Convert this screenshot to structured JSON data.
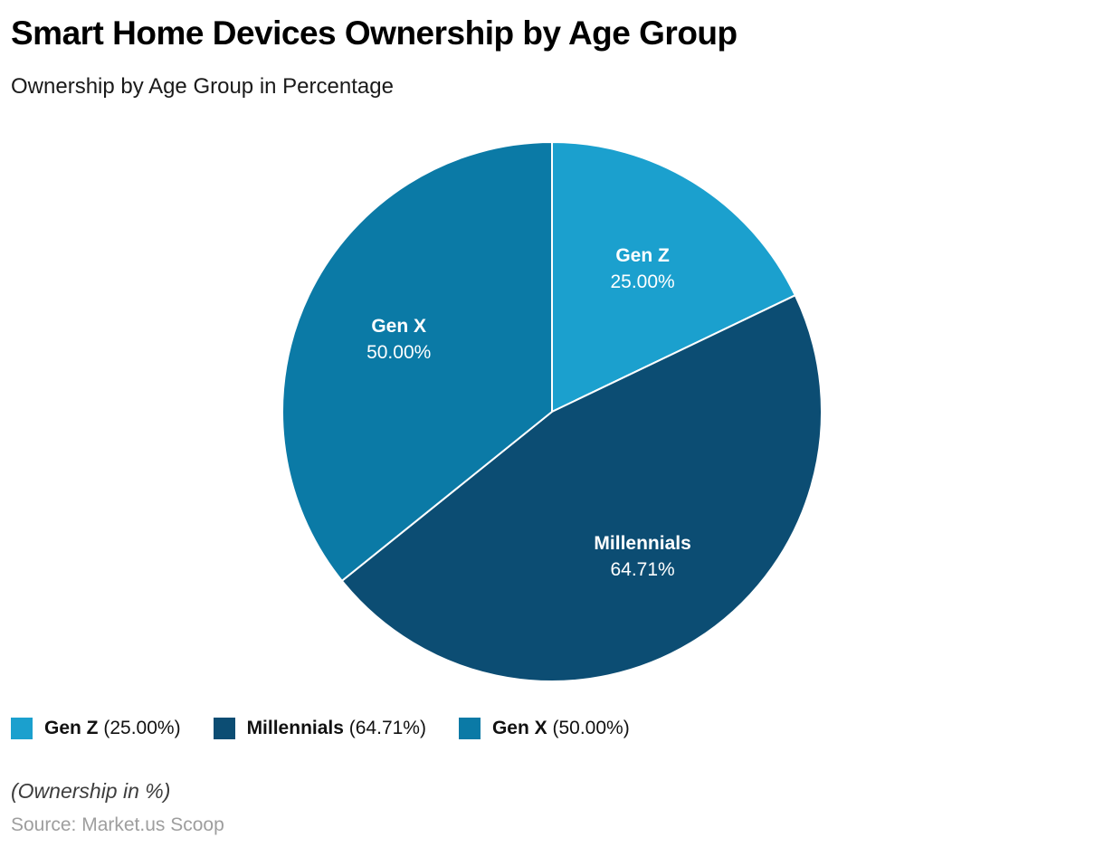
{
  "header": {
    "title": "Smart Home Devices Ownership by Age Group",
    "subtitle": "Ownership by Age Group in Percentage"
  },
  "chart_data": {
    "type": "pie",
    "title": "Smart Home Devices Ownership by Age Group",
    "subtitle": "Ownership by Age Group in Percentage",
    "labels": [
      "Gen Z",
      "Millennials",
      "Gen X"
    ],
    "values": [
      25.0,
      64.71,
      50.0
    ],
    "value_labels": [
      "25.00%",
      "64.71%",
      "50.00%"
    ],
    "colors": [
      "#1BA0CE",
      "#0C4D73",
      "#0B7AA6"
    ],
    "slice_label_color": "#ffffff",
    "slice_border_color": "#ffffff",
    "start_angle_deg": 0,
    "direction": "clockwise",
    "legend_position": "bottom",
    "legend_entries": [
      "Gen Z (25.00%)",
      "Millennials (64.71%)",
      "Gen X (50.00%)"
    ]
  },
  "footer": {
    "note": "(Ownership in %)",
    "source": "Source: Market.us Scoop"
  }
}
